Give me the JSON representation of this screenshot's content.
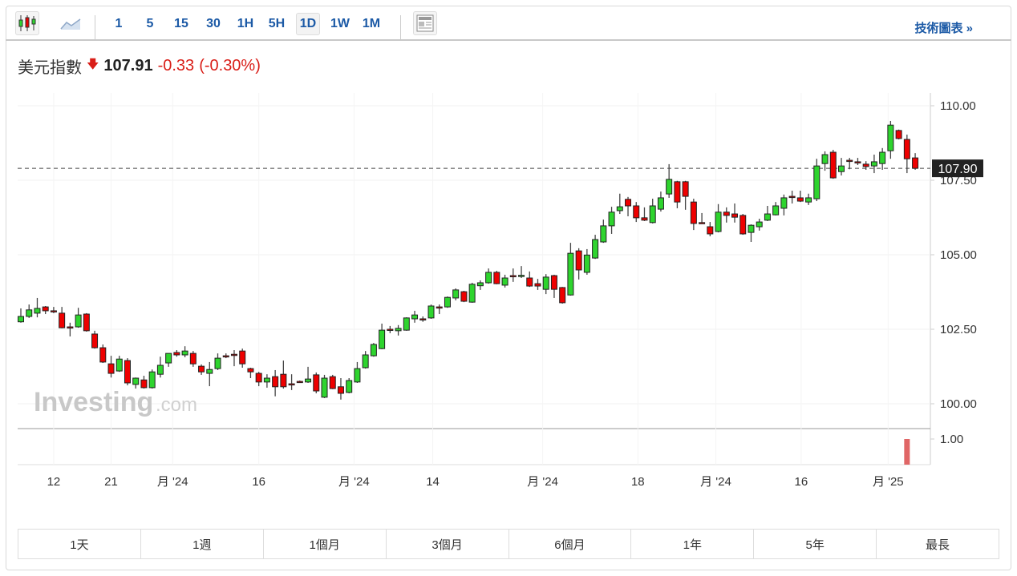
{
  "toolbar": {
    "chart_types": [
      {
        "icon": "candlestick-icon",
        "active": true
      },
      {
        "icon": "area-chart-icon",
        "active": false
      }
    ],
    "intervals": [
      {
        "label": "1"
      },
      {
        "label": "5"
      },
      {
        "label": "15"
      },
      {
        "label": "30"
      },
      {
        "label": "1H"
      },
      {
        "label": "5H"
      },
      {
        "label": "1D",
        "active": true
      },
      {
        "label": "1W"
      },
      {
        "label": "1M"
      }
    ],
    "layout_icon": "layout-icon",
    "tech_chart_label": "技術圖表 »"
  },
  "quote": {
    "name": "美元指數",
    "direction_icon": "arrow-down-icon",
    "price": "107.91",
    "change": "-0.33",
    "change_pct": "(-0.30%)"
  },
  "colors": {
    "up": "#2ed42e",
    "down": "#ee0000",
    "accent": "#1c5aa6",
    "negative": "#d91e18",
    "volume": "#e06666"
  },
  "watermark": "Investing.com",
  "chart_data": {
    "type": "candlestick",
    "ylim": [
      99.0,
      110.6
    ],
    "y_ticks": [
      "110.00",
      "107.50",
      "105.00",
      "102.50",
      "100.00"
    ],
    "y_tick_values": [
      110,
      107.5,
      105,
      102.5,
      100
    ],
    "current_price_label": "107.90",
    "current_price": 107.9,
    "x_labels": [
      {
        "label": "12",
        "index": 4
      },
      {
        "label": "21",
        "index": 11
      },
      {
        "label": "月 '24",
        "index": 18.5
      },
      {
        "label": "16",
        "index": 29
      },
      {
        "label": "月 '24",
        "index": 40.6
      },
      {
        "label": "14",
        "index": 50.2
      },
      {
        "label": "月 '24",
        "index": 63.6
      },
      {
        "label": "18",
        "index": 75.2
      },
      {
        "label": "月 '24",
        "index": 84.7
      },
      {
        "label": "16",
        "index": 95.1
      },
      {
        "label": "月 '25",
        "index": 105.7
      }
    ],
    "volume_tick": "1.00",
    "volume": {
      "index": 108,
      "value": 1.0
    },
    "ohlc": [
      [
        102.75,
        103.2,
        102.72,
        102.93
      ],
      [
        102.93,
        103.33,
        102.88,
        103.15
      ],
      [
        103.04,
        103.55,
        102.9,
        103.2
      ],
      [
        103.25,
        103.28,
        103.01,
        103.12
      ],
      [
        103.12,
        103.25,
        103.04,
        103.11
      ],
      [
        103.04,
        103.25,
        102.53,
        102.55
      ],
      [
        102.58,
        102.72,
        102.26,
        102.57
      ],
      [
        102.58,
        103.22,
        102.55,
        102.98
      ],
      [
        103.01,
        103.04,
        102.42,
        102.45
      ],
      [
        102.34,
        102.45,
        101.85,
        101.88
      ],
      [
        101.88,
        101.99,
        101.37,
        101.4
      ],
      [
        101.34,
        101.61,
        100.88,
        101.02
      ],
      [
        101.1,
        101.61,
        101.07,
        101.5
      ],
      [
        101.45,
        101.53,
        100.62,
        100.7
      ],
      [
        100.65,
        100.88,
        100.51,
        100.86
      ],
      [
        100.8,
        100.94,
        100.51,
        100.54
      ],
      [
        100.54,
        101.15,
        100.51,
        101.07
      ],
      [
        100.99,
        101.58,
        100.88,
        101.29
      ],
      [
        101.37,
        101.69,
        101.24,
        101.69
      ],
      [
        101.72,
        101.8,
        101.58,
        101.64
      ],
      [
        101.64,
        101.93,
        101.56,
        101.77
      ],
      [
        101.69,
        101.77,
        101.24,
        101.34
      ],
      [
        101.26,
        101.32,
        100.97,
        101.07
      ],
      [
        101.02,
        101.4,
        100.59,
        101.15
      ],
      [
        101.18,
        101.69,
        101.13,
        101.53
      ],
      [
        101.61,
        101.69,
        101.53,
        101.6
      ],
      [
        101.66,
        101.8,
        101.26,
        101.65
      ],
      [
        101.77,
        101.85,
        101.21,
        101.34
      ],
      [
        101.18,
        101.21,
        100.86,
        101.07
      ],
      [
        101.02,
        101.07,
        100.59,
        100.73
      ],
      [
        100.73,
        100.99,
        100.54,
        100.86
      ],
      [
        100.91,
        101.13,
        100.25,
        100.57
      ],
      [
        100.99,
        101.45,
        100.51,
        100.57
      ],
      [
        100.67,
        100.99,
        100.46,
        100.66
      ],
      [
        100.75,
        100.78,
        100.73,
        100.74
      ],
      [
        100.73,
        101.24,
        100.7,
        100.83
      ],
      [
        100.97,
        101.05,
        100.35,
        100.43
      ],
      [
        100.22,
        100.97,
        100.19,
        100.86
      ],
      [
        100.91,
        100.97,
        100.49,
        100.51
      ],
      [
        100.57,
        100.86,
        100.14,
        100.35
      ],
      [
        100.38,
        100.86,
        100.35,
        100.78
      ],
      [
        100.73,
        101.4,
        100.7,
        101.18
      ],
      [
        101.21,
        101.77,
        101.18,
        101.64
      ],
      [
        101.61,
        102.04,
        101.58,
        101.99
      ],
      [
        101.85,
        102.69,
        101.83,
        102.47
      ],
      [
        102.5,
        102.61,
        102.37,
        102.49
      ],
      [
        102.45,
        102.64,
        102.29,
        102.53
      ],
      [
        102.47,
        102.9,
        102.45,
        102.88
      ],
      [
        102.85,
        103.12,
        102.72,
        102.98
      ],
      [
        102.85,
        102.93,
        102.75,
        102.84
      ],
      [
        102.88,
        103.33,
        102.85,
        103.28
      ],
      [
        103.25,
        103.33,
        103.01,
        103.24
      ],
      [
        103.25,
        103.6,
        103.22,
        103.57
      ],
      [
        103.55,
        103.87,
        103.47,
        103.82
      ],
      [
        103.76,
        103.79,
        103.41,
        103.44
      ],
      [
        103.41,
        104.06,
        103.39,
        104.01
      ],
      [
        103.96,
        104.14,
        103.82,
        104.06
      ],
      [
        104.06,
        104.54,
        104.03,
        104.41
      ],
      [
        104.41,
        104.46,
        104.01,
        104.03
      ],
      [
        103.98,
        104.33,
        103.9,
        104.22
      ],
      [
        104.3,
        104.54,
        104.09,
        104.29
      ],
      [
        104.3,
        104.62,
        104.22,
        104.31
      ],
      [
        104.22,
        104.44,
        103.92,
        103.95
      ],
      [
        104.03,
        104.19,
        103.82,
        103.95
      ],
      [
        103.84,
        104.35,
        103.68,
        104.25
      ],
      [
        104.3,
        104.33,
        103.55,
        103.84
      ],
      [
        103.9,
        103.92,
        103.36,
        103.39
      ],
      [
        103.65,
        105.4,
        103.63,
        105.05
      ],
      [
        105.13,
        105.22,
        104.17,
        104.49
      ],
      [
        104.41,
        105.19,
        104.33,
        104.99
      ],
      [
        104.89,
        105.67,
        104.86,
        105.51
      ],
      [
        105.43,
        106.18,
        105.4,
        105.97
      ],
      [
        105.97,
        106.61,
        105.7,
        106.43
      ],
      [
        106.48,
        107.05,
        106.37,
        106.61
      ],
      [
        106.86,
        106.94,
        106.29,
        106.64
      ],
      [
        106.64,
        106.77,
        106.1,
        106.24
      ],
      [
        106.24,
        106.59,
        106.13,
        106.16
      ],
      [
        106.08,
        106.88,
        106.05,
        106.64
      ],
      [
        106.53,
        107.12,
        106.45,
        106.91
      ],
      [
        107.04,
        108.04,
        106.91,
        107.53
      ],
      [
        107.45,
        107.48,
        106.56,
        106.77
      ],
      [
        107.45,
        107.48,
        106.51,
        106.96
      ],
      [
        106.77,
        106.88,
        105.83,
        106.05
      ],
      [
        106.08,
        106.4,
        106.05,
        106.07
      ],
      [
        105.94,
        106.1,
        105.62,
        105.7
      ],
      [
        105.78,
        106.7,
        105.75,
        106.43
      ],
      [
        106.43,
        106.59,
        106.08,
        106.32
      ],
      [
        106.37,
        106.72,
        106.08,
        106.26
      ],
      [
        106.32,
        106.37,
        105.67,
        105.7
      ],
      [
        105.75,
        106.02,
        105.43,
        105.99
      ],
      [
        105.94,
        106.21,
        105.81,
        106.1
      ],
      [
        106.16,
        106.64,
        106.13,
        106.37
      ],
      [
        106.34,
        106.77,
        106.32,
        106.64
      ],
      [
        106.56,
        107.02,
        106.32,
        106.91
      ],
      [
        106.96,
        107.15,
        106.72,
        106.95
      ],
      [
        106.91,
        107.15,
        106.77,
        106.8
      ],
      [
        106.77,
        107.05,
        106.67,
        106.91
      ],
      [
        106.88,
        108.22,
        106.8,
        107.98
      ],
      [
        108.06,
        108.47,
        107.82,
        108.36
      ],
      [
        108.44,
        108.52,
        107.55,
        107.58
      ],
      [
        107.79,
        108.25,
        107.66,
        107.98
      ],
      [
        108.17,
        108.25,
        107.87,
        108.16
      ],
      [
        108.12,
        108.25,
        108.01,
        108.11
      ],
      [
        108.04,
        108.14,
        107.85,
        107.96
      ],
      [
        107.98,
        108.36,
        107.74,
        108.12
      ],
      [
        108.06,
        108.58,
        107.85,
        108.44
      ],
      [
        108.49,
        109.49,
        108.22,
        109.35
      ],
      [
        109.17,
        109.2,
        108.87,
        108.9
      ],
      [
        108.87,
        109.03,
        107.74,
        108.22
      ],
      [
        108.25,
        108.41,
        107.85,
        107.9
      ]
    ]
  },
  "ranges": [
    {
      "label": "1天"
    },
    {
      "label": "1週"
    },
    {
      "label": "1個月"
    },
    {
      "label": "3個月"
    },
    {
      "label": "6個月"
    },
    {
      "label": "1年"
    },
    {
      "label": "5年"
    },
    {
      "label": "最長"
    }
  ]
}
